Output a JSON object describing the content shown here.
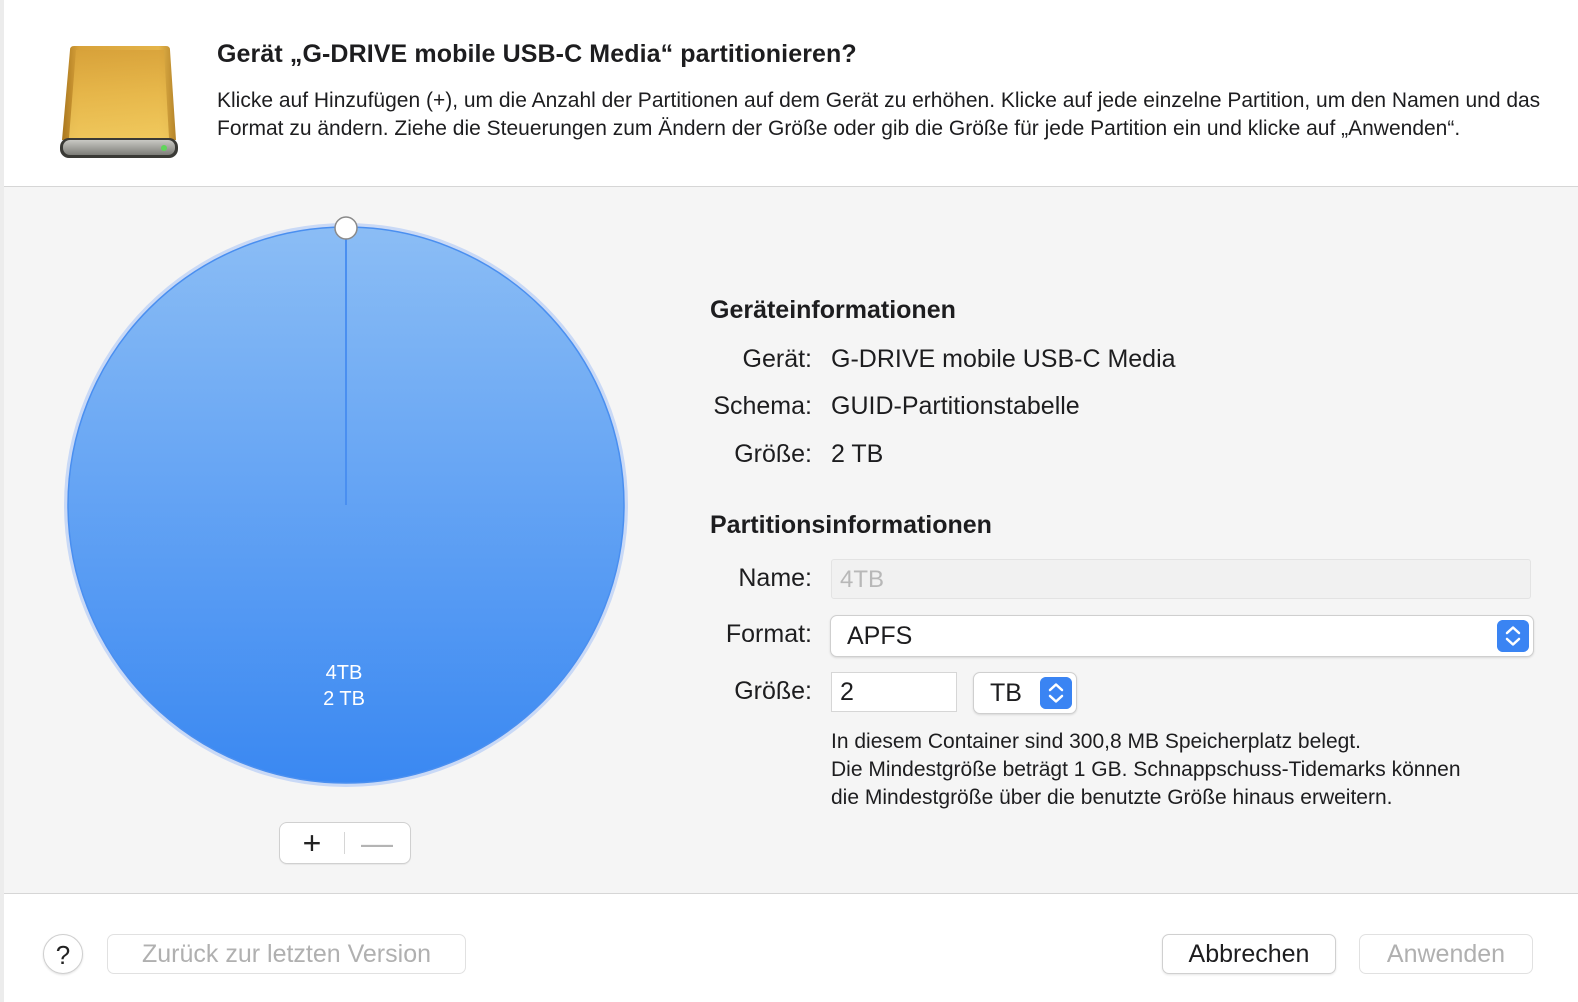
{
  "header": {
    "title": "Gerät „G-DRIVE mobile USB-C Media“ partitionieren?",
    "description": "Klicke auf Hinzufügen (+), um die Anzahl der Partitionen auf dem Gerät zu erhöhen. Klicke auf jede einzelne Partition, um den Namen und das Format zu ändern. Ziehe die Steuerungen zum Ändern der Größe oder gib die Größe für jede Partition ein und klicke auf „Anwenden“.",
    "icon": "external-drive-icon"
  },
  "pie": {
    "partition_name": "4TB",
    "partition_size": "2 TB",
    "add_symbol": "+",
    "remove_symbol": "—",
    "fill_color": "#4e9af5"
  },
  "device_info": {
    "heading": "Geräteinformationen",
    "device_label": "Gerät:",
    "device_value": "G-DRIVE mobile USB-C Media",
    "scheme_label": "Schema:",
    "scheme_value": "GUID-Partitionstabelle",
    "size_label": "Größe:",
    "size_value": "2 TB"
  },
  "partition_info": {
    "heading": "Partitionsinformationen",
    "name_label": "Name:",
    "name_placeholder": "4TB",
    "format_label": "Format:",
    "format_value": "APFS",
    "size_label": "Größe:",
    "size_value": "2",
    "unit_value": "TB",
    "note_line1": "In diesem Container sind 300,8 MB Speicherplatz belegt.",
    "note_line2": "Die Mindestgröße beträgt 1 GB. Schnappschuss-Tidemarks können",
    "note_line3": "die Mindestgröße über die benutzte Größe hinaus erweitern."
  },
  "footer": {
    "help_label": "?",
    "revert_label": "Zurück zur letzten Version",
    "cancel_label": "Abbrechen",
    "apply_label": "Anwenden"
  },
  "colors": {
    "accent": "#3a84f3"
  }
}
